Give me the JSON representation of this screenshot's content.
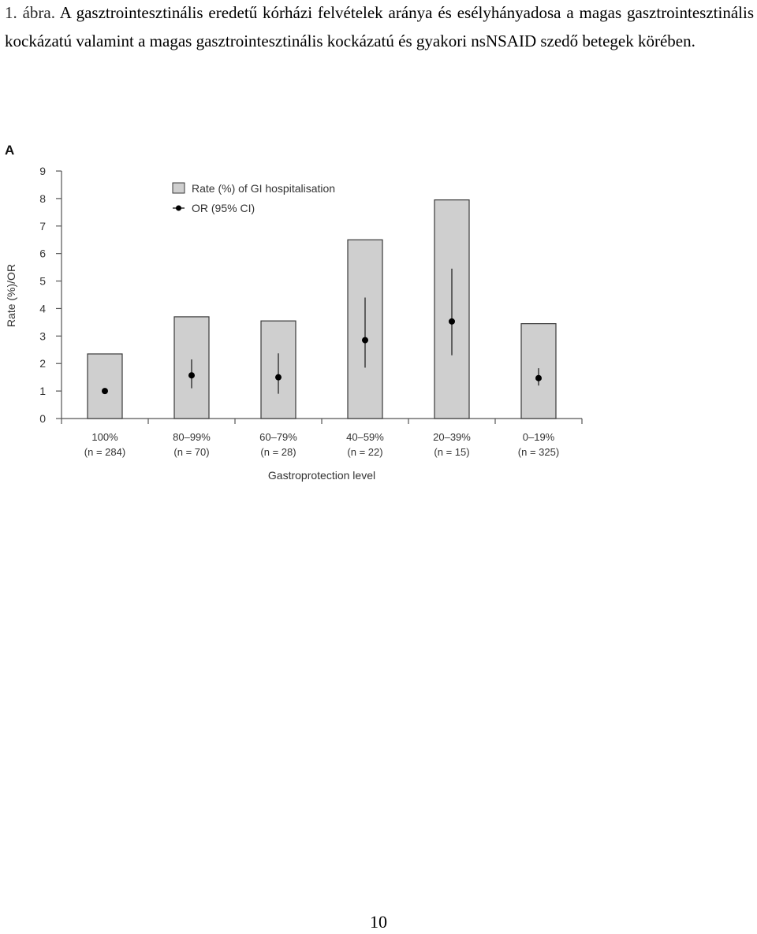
{
  "caption": {
    "label": "1. ábra.",
    "text": "A gasztrointesztinális eredetű kórházi felvételek aránya és esélyhányadosa a magas gasztrointesztinális kockázatú valamint a magas gasztrointesztinális kockázatú és gyakori nsNSAID szedő betegek körében."
  },
  "panel_label": "A",
  "chart_data": {
    "type": "bar",
    "xlabel": "Gastroprotection level",
    "ylabel": "Rate (%)/OR",
    "ylim": [
      0,
      9
    ],
    "yticks": [
      0,
      1,
      2,
      3,
      4,
      5,
      6,
      7,
      8,
      9
    ],
    "categories": [
      "100%",
      "80–99%",
      "60–79%",
      "40–59%",
      "20–39%",
      "0–19%"
    ],
    "n_labels": [
      "(n = 284)",
      "(n = 70)",
      "(n = 28)",
      "(n = 22)",
      "(n = 15)",
      "(n = 325)"
    ],
    "series": [
      {
        "name": "Rate (%) of GI hospitalisation",
        "type": "bar",
        "values": [
          2.35,
          3.7,
          3.55,
          6.5,
          7.95,
          3.45
        ]
      },
      {
        "name": "OR (95% CI)",
        "type": "point-errorbar",
        "values": [
          1.0,
          1.57,
          1.5,
          2.85,
          3.53,
          1.47
        ],
        "ci_low": [
          null,
          1.1,
          0.9,
          1.85,
          2.3,
          1.2
        ],
        "ci_high": [
          null,
          2.15,
          2.37,
          4.4,
          5.45,
          1.83
        ]
      }
    ],
    "legend": {
      "placement": "top-left"
    },
    "colors": {
      "bar_fill": "#cfcfcf",
      "bar_stroke": "#3a3a3a",
      "point": "#000000",
      "errorbar": "#444444"
    },
    "grid": false
  },
  "page_number": "10"
}
